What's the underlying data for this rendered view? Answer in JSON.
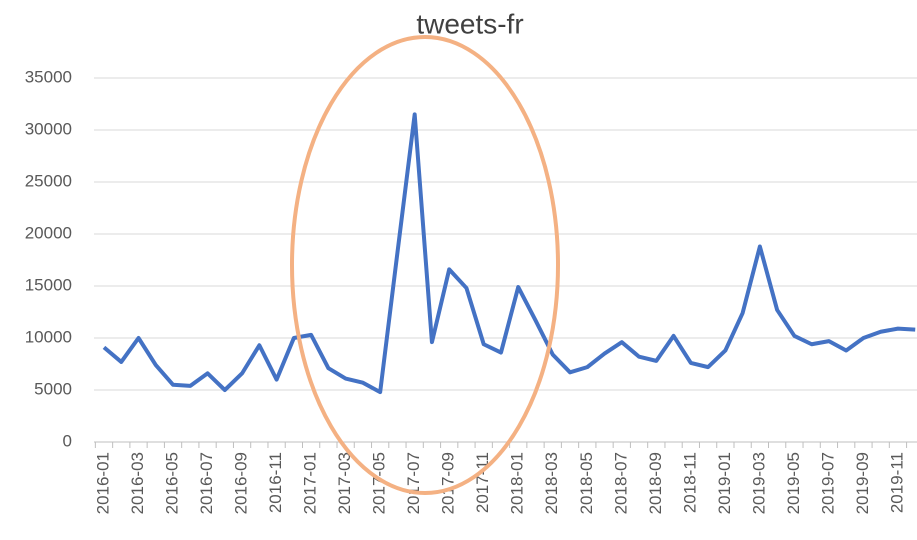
{
  "chart_data": {
    "type": "line",
    "title": "tweets-fr",
    "categories": [
      "2016-01",
      null,
      "2016-03",
      null,
      "2016-05",
      null,
      "2016-07",
      null,
      "2016-09",
      null,
      "2016-11",
      null,
      "2017-01",
      null,
      "2017-03",
      null,
      "2017-05",
      null,
      "2017-07",
      null,
      "2017-09",
      null,
      "2017-11",
      null,
      "2018-01",
      null,
      "2018-03",
      null,
      "2018-05",
      null,
      "2018-07",
      null,
      "2018-09",
      null,
      "2018-11",
      null,
      "2019-01",
      null,
      "2019-03",
      null,
      "2019-05",
      null,
      "2019-07",
      null,
      "2019-09",
      null,
      "2019-11",
      null
    ],
    "values": [
      9100,
      7700,
      10000,
      7400,
      5500,
      5400,
      6600,
      5000,
      6600,
      9300,
      6000,
      10000,
      10300,
      7100,
      6100,
      5700,
      4800,
      18200,
      31500,
      9600,
      16600,
      14800,
      9400,
      8600,
      14900,
      11700,
      8400,
      6700,
      7200,
      8500,
      9600,
      8200,
      7800,
      10200,
      7600,
      7200,
      8800,
      12400,
      18800,
      12700,
      10200,
      9400,
      9700,
      8800,
      10000,
      10600,
      10900,
      10800
    ],
    "color": "#4472c4",
    "ylim": [
      0,
      35000
    ],
    "yticks": [
      0,
      5000,
      10000,
      15000,
      20000,
      25000,
      30000,
      35000
    ],
    "grid": true
  }
}
